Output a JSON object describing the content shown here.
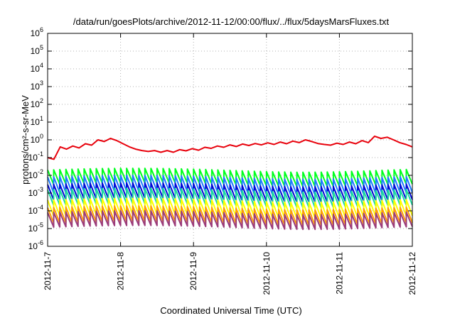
{
  "chart_data": {
    "type": "line",
    "title": "/data/run/goesPlots/archive/2012-11-12/00:00/flux/../flux/5daysMarsFluxes.txt",
    "xlabel": "Coordinated Universal Time (UTC)",
    "ylabel": "protons/cm²-s-sr-MeV",
    "yscale": "log",
    "ylim": [
      1e-06,
      1000000.0
    ],
    "yticks": [
      {
        "base": "10",
        "exp": "-6"
      },
      {
        "base": "10",
        "exp": "-5"
      },
      {
        "base": "10",
        "exp": "-4"
      },
      {
        "base": "10",
        "exp": "-3"
      },
      {
        "base": "10",
        "exp": "-2"
      },
      {
        "base": "10",
        "exp": "-1"
      },
      {
        "base": "10",
        "exp": "0"
      },
      {
        "base": "10",
        "exp": "1"
      },
      {
        "base": "10",
        "exp": "2"
      },
      {
        "base": "10",
        "exp": "3"
      },
      {
        "base": "10",
        "exp": "4"
      },
      {
        "base": "10",
        "exp": "5"
      },
      {
        "base": "10",
        "exp": "6"
      }
    ],
    "xlim": [
      "2012-11-07",
      "2012-11-12"
    ],
    "xticks": [
      "2012-11-7",
      "2012-11-8",
      "2012-11-9",
      "2012-11-10",
      "2012-11-11",
      "2012-11-12"
    ],
    "grid": true,
    "legend": "none",
    "series": [
      {
        "color": "#e8000b",
        "values": [
          0.1,
          0.08,
          0.4,
          0.3,
          0.45,
          0.35,
          0.6,
          0.5,
          1.0,
          0.8,
          1.2,
          0.9,
          0.6,
          0.4,
          0.3,
          0.25,
          0.22,
          0.25,
          0.2,
          0.25,
          0.2,
          0.28,
          0.24,
          0.32,
          0.26,
          0.38,
          0.33,
          0.45,
          0.38,
          0.52,
          0.42,
          0.58,
          0.48,
          0.62,
          0.52,
          0.68,
          0.55,
          0.75,
          0.6,
          0.85,
          0.7,
          1.0,
          0.8,
          0.62,
          0.55,
          0.5,
          0.65,
          0.55,
          0.75,
          0.6,
          0.9,
          0.7,
          1.6,
          1.2,
          1.4,
          1.0,
          0.7,
          0.55,
          0.4
        ]
      },
      {
        "color": "#00ff1e",
        "lo": 0.003,
        "hi": 0.02
      },
      {
        "color": "#1c7cff",
        "lo": 0.001,
        "hi": 0.008
      },
      {
        "color": "#0009d4",
        "lo": 0.0004,
        "hi": 0.003
      },
      {
        "color": "#19dba0",
        "lo": 0.0002,
        "hi": 0.0015
      },
      {
        "color": "#ffff00",
        "lo": 5e-05,
        "hi": 0.0004
      },
      {
        "color": "#ff9e00",
        "lo": 2e-05,
        "hi": 0.00015
      },
      {
        "color": "#9b3b7a",
        "lo": 1.2e-05,
        "hi": 8e-05
      }
    ]
  }
}
